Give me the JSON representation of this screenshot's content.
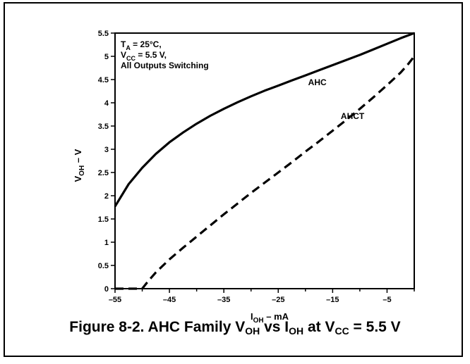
{
  "chart_data": {
    "type": "line",
    "caption": {
      "prefix": "Figure 8-2. AHC Family V",
      "sub1": "OH",
      "mid": " vs I",
      "sub2": "OH",
      "mid2": " at V",
      "sub3": "CC",
      "suffix": " = 5.5 V"
    },
    "xlabel": {
      "main": "I",
      "sub": "OH",
      "rest": " – mA"
    },
    "ylabel": {
      "main": "V",
      "sub": "OH",
      "rest": " – V"
    },
    "xlim": [
      -55,
      0
    ],
    "ylim": [
      0,
      5.5
    ],
    "x_ticks": [
      -55,
      -45,
      -35,
      -25,
      -15,
      -5
    ],
    "x_tick_labels": [
      "–55",
      "–45",
      "–35",
      "–25",
      "–15",
      "–5"
    ],
    "y_ticks": [
      0,
      0.5,
      1,
      1.5,
      2,
      2.5,
      3,
      3.5,
      4,
      4.5,
      5,
      5.5
    ],
    "y_tick_labels": [
      "0",
      "0.5",
      "1",
      "1.5",
      "2",
      "2.5",
      "3",
      "3.5",
      "4",
      "4.5",
      "5",
      "5.5"
    ],
    "grid": false,
    "conditions": [
      {
        "main": "T",
        "sub": "A",
        "rest": " = 25°C,"
      },
      {
        "main": "V",
        "sub": "CC",
        "rest": " = 5.5 V,"
      },
      {
        "main": "All Outputs Switching",
        "sub": "",
        "rest": ""
      }
    ],
    "series": [
      {
        "name": "AHC",
        "style": "solid",
        "color": "#000000",
        "x": [
          -55,
          -52.5,
          -50,
          -47.5,
          -45,
          -42.5,
          -40,
          -37.5,
          -35,
          -32.5,
          -30,
          -27.5,
          -25,
          -22.5,
          -20,
          -17.5,
          -15,
          -12.5,
          -10,
          -7.5,
          -5,
          -2.5,
          0
        ],
        "y": [
          1.77,
          2.25,
          2.6,
          2.9,
          3.15,
          3.36,
          3.55,
          3.72,
          3.87,
          4.01,
          4.14,
          4.26,
          4.37,
          4.48,
          4.59,
          4.7,
          4.81,
          4.92,
          5.03,
          5.15,
          5.27,
          5.39,
          5.5
        ]
      },
      {
        "name": "AHCT",
        "style": "dashed",
        "color": "#000000",
        "x": [
          -55,
          -52,
          -50,
          -49,
          -47.5,
          -45,
          -42.5,
          -40,
          -37.5,
          -35,
          -32.5,
          -30,
          -27.5,
          -25,
          -22.5,
          -20,
          -17.5,
          -15,
          -12.5,
          -10,
          -7.5,
          -5,
          -2.5,
          -1,
          0
        ],
        "y": [
          0,
          0,
          0,
          0.15,
          0.35,
          0.63,
          0.88,
          1.12,
          1.36,
          1.6,
          1.83,
          2.06,
          2.28,
          2.5,
          2.72,
          2.95,
          3.17,
          3.4,
          3.63,
          3.87,
          4.12,
          4.38,
          4.65,
          4.85,
          5.0
        ]
      }
    ],
    "series_labels": [
      {
        "text": "AHC",
        "x": -19.5,
        "y": 4.38
      },
      {
        "text": "AHCT",
        "x": -13.5,
        "y": 3.65
      }
    ]
  }
}
